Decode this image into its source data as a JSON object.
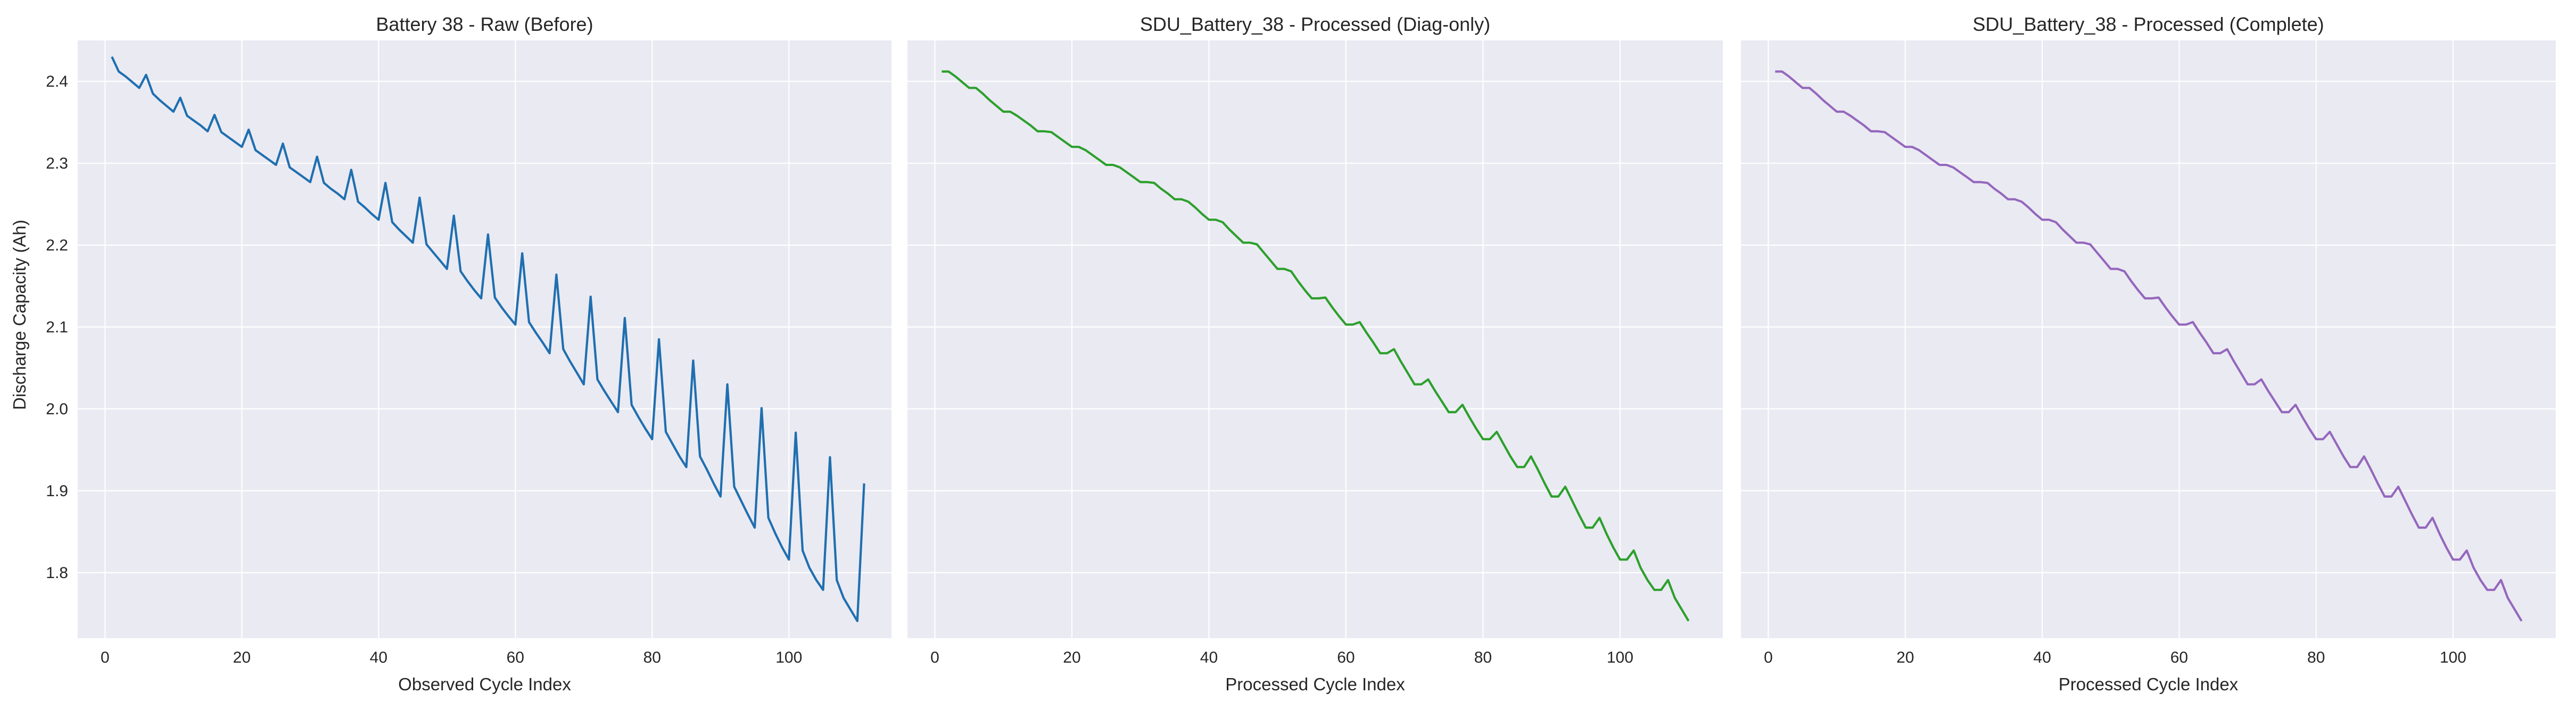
{
  "figure": {
    "shared_ylabel": "Discharge Capacity (Ah)"
  },
  "chart_data": [
    {
      "type": "line",
      "title": "Battery 38 - Raw (Before)",
      "xlabel": "Observed Cycle Index",
      "ylabel": "Discharge Capacity (Ah)",
      "xlim": [
        -4,
        115
      ],
      "ylim": [
        1.72,
        2.45
      ],
      "xticks": [
        0,
        20,
        40,
        60,
        80,
        100
      ],
      "yticks": [
        1.8,
        1.9,
        2.0,
        2.1,
        2.2,
        2.3,
        2.4
      ],
      "grid": true,
      "series": [
        {
          "color": "#1f6fb0",
          "x": [
            1,
            2,
            3,
            4,
            5,
            6,
            7,
            8,
            9,
            10,
            11,
            12,
            13,
            14,
            15,
            16,
            17,
            18,
            19,
            20,
            21,
            22,
            23,
            24,
            25,
            26,
            27,
            28,
            29,
            30,
            31,
            32,
            33,
            34,
            35,
            36,
            37,
            38,
            39,
            40,
            41,
            42,
            43,
            44,
            45,
            46,
            47,
            48,
            49,
            50,
            51,
            52,
            53,
            54,
            55,
            56,
            57,
            58,
            59,
            60,
            61,
            62,
            63,
            64,
            65,
            66,
            67,
            68,
            69,
            70,
            71,
            72,
            73,
            74,
            75,
            76,
            77,
            78,
            79,
            80,
            81,
            82,
            83,
            84,
            85,
            86,
            87,
            88,
            89,
            90,
            91,
            92,
            93,
            94,
            95,
            96,
            97,
            98,
            99,
            100,
            101,
            102,
            103,
            104,
            105,
            106,
            107,
            108,
            109,
            110,
            111
          ],
          "values": [
            2.43,
            2.412,
            2.406,
            2.399,
            2.392,
            2.408,
            2.385,
            2.377,
            2.37,
            2.363,
            2.38,
            2.358,
            2.352,
            2.346,
            2.339,
            2.359,
            2.338,
            2.332,
            2.326,
            2.32,
            2.341,
            2.316,
            2.31,
            2.304,
            2.298,
            2.324,
            2.295,
            2.289,
            2.283,
            2.277,
            2.308,
            2.276,
            2.269,
            2.263,
            2.256,
            2.292,
            2.253,
            2.246,
            2.238,
            2.231,
            2.276,
            2.228,
            2.219,
            2.211,
            2.203,
            2.258,
            2.201,
            2.191,
            2.181,
            2.171,
            2.236,
            2.168,
            2.156,
            2.145,
            2.135,
            2.213,
            2.136,
            2.124,
            2.113,
            2.103,
            2.19,
            2.106,
            2.093,
            2.081,
            2.068,
            2.164,
            2.073,
            2.058,
            2.044,
            2.03,
            2.137,
            2.036,
            2.022,
            2.009,
            1.996,
            2.111,
            2.005,
            1.99,
            1.976,
            1.963,
            2.085,
            1.972,
            1.957,
            1.942,
            1.929,
            2.059,
            1.942,
            1.926,
            1.909,
            1.893,
            2.03,
            1.905,
            1.888,
            1.871,
            1.855,
            2.001,
            1.867,
            1.848,
            1.831,
            1.816,
            1.971,
            1.827,
            1.806,
            1.791,
            1.779,
            1.941,
            1.791,
            1.769,
            1.755,
            1.741,
            1.909
          ]
        }
      ]
    },
    {
      "type": "line",
      "title": "SDU_Battery_38 - Processed (Diag-only)",
      "xlabel": "Processed Cycle Index",
      "ylabel": "",
      "xlim": [
        -4,
        115
      ],
      "ylim": [
        1.72,
        2.45
      ],
      "xticks": [
        0,
        20,
        40,
        60,
        80,
        100
      ],
      "grid": true,
      "series": [
        {
          "color": "#2ca02c",
          "x": [
            1,
            2,
            3,
            4,
            5,
            6,
            7,
            8,
            9,
            10,
            11,
            12,
            13,
            14,
            15,
            16,
            17,
            18,
            19,
            20,
            21,
            22,
            23,
            24,
            25,
            26,
            27,
            28,
            29,
            30,
            31,
            32,
            33,
            34,
            35,
            36,
            37,
            38,
            39,
            40,
            41,
            42,
            43,
            44,
            45,
            46,
            47,
            48,
            49,
            50,
            51,
            52,
            53,
            54,
            55,
            56,
            57,
            58,
            59,
            60,
            61,
            62,
            63,
            64,
            65,
            66,
            67,
            68,
            69,
            70,
            71,
            72,
            73,
            74,
            75,
            76,
            77,
            78,
            79,
            80,
            81,
            82,
            83,
            84,
            85,
            86,
            87,
            88,
            89,
            90,
            91,
            92,
            93,
            94,
            95,
            96,
            97,
            98,
            99,
            100,
            101,
            102,
            103,
            104,
            105,
            106,
            107,
            108,
            109,
            110
          ],
          "values": [
            2.412,
            2.412,
            2.406,
            2.399,
            2.392,
            2.392,
            2.385,
            2.377,
            2.37,
            2.363,
            2.363,
            2.358,
            2.352,
            2.346,
            2.339,
            2.339,
            2.338,
            2.332,
            2.326,
            2.32,
            2.32,
            2.316,
            2.31,
            2.304,
            2.298,
            2.298,
            2.295,
            2.289,
            2.283,
            2.277,
            2.277,
            2.276,
            2.269,
            2.263,
            2.256,
            2.256,
            2.253,
            2.246,
            2.238,
            2.231,
            2.231,
            2.228,
            2.219,
            2.211,
            2.203,
            2.203,
            2.201,
            2.191,
            2.181,
            2.171,
            2.171,
            2.168,
            2.156,
            2.145,
            2.135,
            2.135,
            2.136,
            2.124,
            2.113,
            2.103,
            2.103,
            2.106,
            2.093,
            2.081,
            2.068,
            2.068,
            2.073,
            2.058,
            2.044,
            2.03,
            2.03,
            2.036,
            2.022,
            2.009,
            1.996,
            1.996,
            2.005,
            1.99,
            1.976,
            1.963,
            1.963,
            1.972,
            1.957,
            1.942,
            1.929,
            1.929,
            1.942,
            1.926,
            1.909,
            1.893,
            1.893,
            1.905,
            1.888,
            1.871,
            1.855,
            1.855,
            1.867,
            1.848,
            1.831,
            1.816,
            1.816,
            1.827,
            1.806,
            1.791,
            1.779,
            1.779,
            1.791,
            1.769,
            1.755,
            1.741
          ]
        }
      ]
    },
    {
      "type": "line",
      "title": "SDU_Battery_38 - Processed (Complete)",
      "xlabel": "Processed Cycle Index",
      "ylabel": "",
      "xlim": [
        -4,
        115
      ],
      "ylim": [
        1.72,
        2.45
      ],
      "xticks": [
        0,
        20,
        40,
        60,
        80,
        100
      ],
      "grid": true,
      "series": [
        {
          "color": "#9467bd",
          "x": [
            1,
            2,
            3,
            4,
            5,
            6,
            7,
            8,
            9,
            10,
            11,
            12,
            13,
            14,
            15,
            16,
            17,
            18,
            19,
            20,
            21,
            22,
            23,
            24,
            25,
            26,
            27,
            28,
            29,
            30,
            31,
            32,
            33,
            34,
            35,
            36,
            37,
            38,
            39,
            40,
            41,
            42,
            43,
            44,
            45,
            46,
            47,
            48,
            49,
            50,
            51,
            52,
            53,
            54,
            55,
            56,
            57,
            58,
            59,
            60,
            61,
            62,
            63,
            64,
            65,
            66,
            67,
            68,
            69,
            70,
            71,
            72,
            73,
            74,
            75,
            76,
            77,
            78,
            79,
            80,
            81,
            82,
            83,
            84,
            85,
            86,
            87,
            88,
            89,
            90,
            91,
            92,
            93,
            94,
            95,
            96,
            97,
            98,
            99,
            100,
            101,
            102,
            103,
            104,
            105,
            106,
            107,
            108,
            109,
            110
          ],
          "values": [
            2.412,
            2.412,
            2.406,
            2.399,
            2.392,
            2.392,
            2.385,
            2.377,
            2.37,
            2.363,
            2.363,
            2.358,
            2.352,
            2.346,
            2.339,
            2.339,
            2.338,
            2.332,
            2.326,
            2.32,
            2.32,
            2.316,
            2.31,
            2.304,
            2.298,
            2.298,
            2.295,
            2.289,
            2.283,
            2.277,
            2.277,
            2.276,
            2.269,
            2.263,
            2.256,
            2.256,
            2.253,
            2.246,
            2.238,
            2.231,
            2.231,
            2.228,
            2.219,
            2.211,
            2.203,
            2.203,
            2.201,
            2.191,
            2.181,
            2.171,
            2.171,
            2.168,
            2.156,
            2.145,
            2.135,
            2.135,
            2.136,
            2.124,
            2.113,
            2.103,
            2.103,
            2.106,
            2.093,
            2.081,
            2.068,
            2.068,
            2.073,
            2.058,
            2.044,
            2.03,
            2.03,
            2.036,
            2.022,
            2.009,
            1.996,
            1.996,
            2.005,
            1.99,
            1.976,
            1.963,
            1.963,
            1.972,
            1.957,
            1.942,
            1.929,
            1.929,
            1.942,
            1.926,
            1.909,
            1.893,
            1.893,
            1.905,
            1.888,
            1.871,
            1.855,
            1.855,
            1.867,
            1.848,
            1.831,
            1.816,
            1.816,
            1.827,
            1.806,
            1.791,
            1.779,
            1.779,
            1.791,
            1.769,
            1.755,
            1.741
          ]
        }
      ]
    }
  ]
}
